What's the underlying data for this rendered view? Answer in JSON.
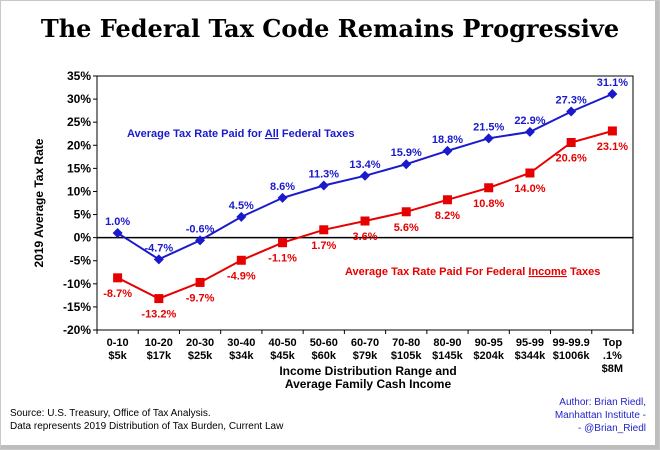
{
  "chart_data": {
    "type": "line",
    "title": "The Federal Tax Code Remains Progressive",
    "xlabel": "Income Distribution Range and Average Family Cash Income",
    "xlabel_lines": [
      "Income Distribution Range and",
      "Average Family Cash Income"
    ],
    "ylabel": "2019 Average Tax Rate",
    "ylim": [
      -20,
      35
    ],
    "ytick_step": 5,
    "ytick_format": "percent",
    "grid": false,
    "categories": [
      [
        "0-10",
        "$5k"
      ],
      [
        "10-20",
        "$17k"
      ],
      [
        "20-30",
        "$25k"
      ],
      [
        "30-40",
        "$34k"
      ],
      [
        "40-50",
        "$45k"
      ],
      [
        "50-60",
        "$60k"
      ],
      [
        "60-70",
        "$79k"
      ],
      [
        "70-80",
        "$105k"
      ],
      [
        "80-90",
        "$145k"
      ],
      [
        "90-95",
        "$204k"
      ],
      [
        "95-99",
        "$344k"
      ],
      [
        "99-99.9",
        "$1006k"
      ],
      [
        "Top",
        ".1%",
        "$8M"
      ]
    ],
    "series": [
      {
        "name": "Average Tax Rate Paid for All Federal Taxes",
        "legend_parts": [
          "Average Tax Rate Paid for ",
          "All",
          "  Federal Taxes"
        ],
        "color": "#1a1acc",
        "marker": "diamond",
        "values": [
          1.0,
          -4.7,
          -0.6,
          4.5,
          8.6,
          11.3,
          13.4,
          15.9,
          18.8,
          21.5,
          22.9,
          27.3,
          31.1
        ],
        "labels": [
          "1.0%",
          "-4.7%",
          "-0.6%",
          "4.5%",
          "8.6%",
          "11.3%",
          "13.4%",
          "15.9%",
          "18.8%",
          "21.5%",
          "22.9%",
          "27.3%",
          "31.1%"
        ],
        "label_position": "above"
      },
      {
        "name": "Average Tax Rate Paid For Federal Income Taxes",
        "legend_parts": [
          "Average Tax Rate Paid For Federal ",
          "Income",
          " Taxes"
        ],
        "color": "#e60000",
        "marker": "square",
        "values": [
          -8.7,
          -13.2,
          -9.7,
          -4.9,
          -1.1,
          1.7,
          3.6,
          5.6,
          8.2,
          10.8,
          14.0,
          20.6,
          23.1
        ],
        "labels": [
          "-8.7%",
          "-13.2%",
          "-9.7%",
          "-4.9%",
          "-1.1%",
          "1.7%",
          "3.6%",
          "5.6%",
          "8.2%",
          "10.8%",
          "14.0%",
          "20.6%",
          "23.1%"
        ],
        "label_position": "below"
      }
    ]
  },
  "footer": {
    "source_line1": "Source: U.S. Treasury, Office of Tax Analysis.",
    "source_line2": "Data represents 2019 Distribution of Tax Burden, Current Law",
    "author_line1": "Author: Brian Riedl,",
    "author_line2": "Manhattan Institute -",
    "author_line3": "- @Brian_Riedl"
  }
}
